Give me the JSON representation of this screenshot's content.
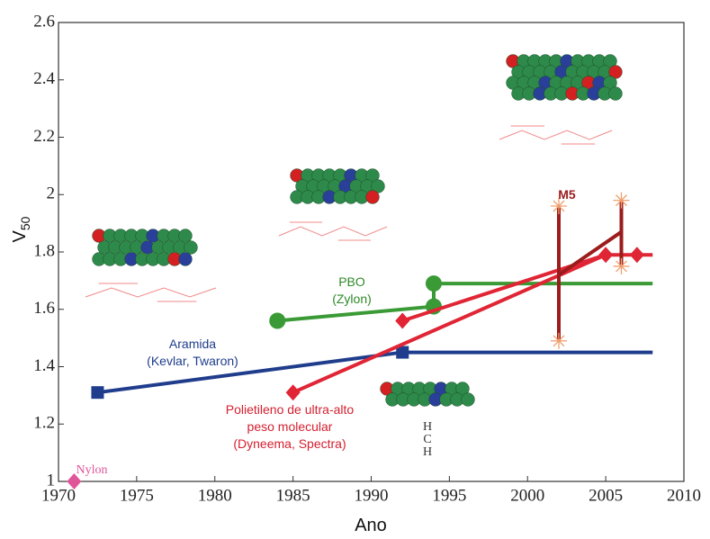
{
  "chart_data": {
    "type": "line",
    "xlabel": "Ano",
    "ylabel": "V50",
    "xlim": [
      1970,
      2010
    ],
    "ylim": [
      1,
      2.6
    ],
    "xticks": [
      1970,
      1975,
      1980,
      1985,
      1990,
      1995,
      2000,
      2005,
      2010
    ],
    "yticks": [
      1,
      1.2,
      1.4,
      1.6,
      1.8,
      2,
      2.2,
      2.4,
      2.6
    ],
    "series": [
      {
        "color": "#1f3d8c",
        "marker": "square",
        "x": [
          1972.5,
          1992,
          2008
        ],
        "values": [
          1.31,
          1.45,
          1.45
        ],
        "markers": [
          true,
          true,
          false
        ]
      },
      {
        "color": "#3a9a35",
        "marker": "circle",
        "x": [
          1984,
          1994,
          1994,
          2008
        ],
        "values": [
          1.56,
          1.61,
          1.69,
          1.69
        ],
        "markers": [
          true,
          true,
          true,
          false
        ]
      },
      {
        "color": "#e02535",
        "marker": "diamond",
        "x": [
          1985,
          2005,
          2007,
          2008
        ],
        "values": [
          1.31,
          1.79,
          1.79,
          1.79
        ],
        "markers": [
          true,
          true,
          true,
          false
        ]
      },
      {
        "color": "#e02535",
        "marker": "diamond",
        "x": [
          1992,
          2005
        ],
        "values": [
          1.56,
          1.79
        ],
        "markers": [
          true,
          false
        ]
      },
      {
        "color": "#9b1c1c",
        "marker": "none",
        "x": [
          2002,
          2006
        ],
        "values": [
          1.72,
          1.87
        ],
        "markers": [
          false,
          false
        ]
      },
      {
        "color": "#e0559a",
        "marker": "diamond",
        "x": [
          1971
        ],
        "values": [
          1.0
        ],
        "markers": [
          true
        ]
      }
    ],
    "error_bars": {
      "color": "#9b1c1c",
      "x": [
        2002,
        2006
      ],
      "low": [
        1.49,
        1.75
      ],
      "high": [
        1.96,
        1.98
      ]
    },
    "annotations": [
      {
        "lines": [
          "PBO",
          "(Zylon)"
        ],
        "color": "#2f8a2a"
      },
      {
        "lines": [
          "Aramida",
          "(Kevlar, Twaron)"
        ],
        "color": "#1f3d8c"
      },
      {
        "lines": [
          "Polietileno de ultra-alto",
          "peso molecular",
          "(Dyneema, Spectra)"
        ],
        "color": "#d42030"
      },
      {
        "lines": [
          "M5"
        ],
        "color": "#9b1c1c"
      },
      {
        "lines": [
          "Nylon"
        ],
        "color": "#e0559a"
      },
      {
        "lines": [
          "H",
          "C",
          "H"
        ],
        "color": "#333333"
      }
    ]
  }
}
